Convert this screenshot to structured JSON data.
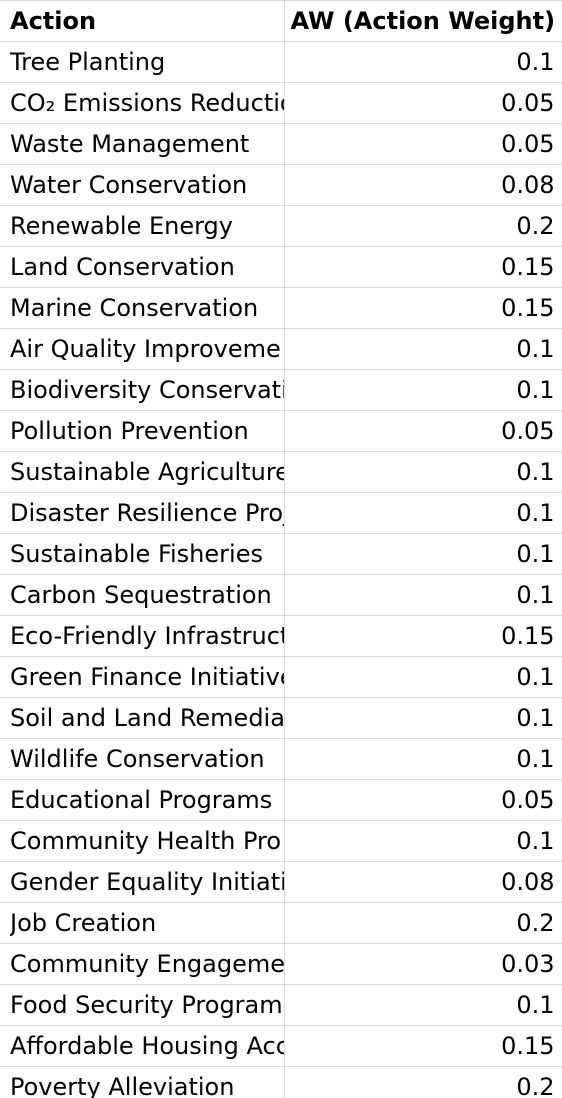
{
  "table": {
    "headers": {
      "action": "Action",
      "weight": "AW (Action Weight)"
    },
    "rows": [
      {
        "action": "Tree Planting",
        "weight": "0.1"
      },
      {
        "action": "CO₂ Emissions Reductio",
        "weight": "0.05"
      },
      {
        "action": "Waste Management",
        "weight": "0.05"
      },
      {
        "action": "Water Conservation",
        "weight": "0.08"
      },
      {
        "action": "Renewable Energy",
        "weight": "0.2"
      },
      {
        "action": "Land Conservation",
        "weight": "0.15"
      },
      {
        "action": "Marine Conservation",
        "weight": "0.15"
      },
      {
        "action": "Air Quality Improveme",
        "weight": "0.1"
      },
      {
        "action": "Biodiversity Conservati",
        "weight": "0.1"
      },
      {
        "action": "Pollution Prevention",
        "weight": "0.05"
      },
      {
        "action": "Sustainable Agriculture",
        "weight": "0.1"
      },
      {
        "action": "Disaster Resilience Proj",
        "weight": "0.1"
      },
      {
        "action": "Sustainable Fisheries",
        "weight": "0.1"
      },
      {
        "action": "Carbon Sequestration",
        "weight": "0.1"
      },
      {
        "action": "Eco-Friendly Infrastruct",
        "weight": "0.15"
      },
      {
        "action": "Green Finance Initiative",
        "weight": "0.1"
      },
      {
        "action": "Soil and Land Remediat",
        "weight": "0.1"
      },
      {
        "action": "Wildlife Conservation",
        "weight": "0.1"
      },
      {
        "action": "Educational Programs",
        "weight": "0.05"
      },
      {
        "action": "Community Health Pro",
        "weight": "0.1"
      },
      {
        "action": "Gender Equality Initiati",
        "weight": "0.08"
      },
      {
        "action": "Job Creation",
        "weight": "0.2"
      },
      {
        "action": "Community Engageme",
        "weight": "0.03"
      },
      {
        "action": "Food Security Program",
        "weight": "0.1"
      },
      {
        "action": "Affordable Housing Acc",
        "weight": "0.15"
      },
      {
        "action": "Poverty Alleviation",
        "weight": "0.2"
      }
    ]
  }
}
